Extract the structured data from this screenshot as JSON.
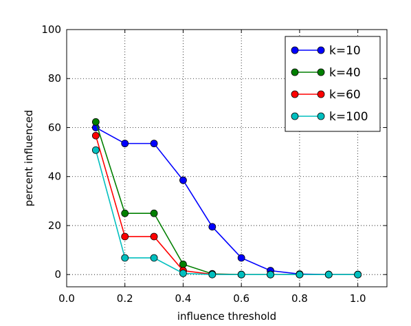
{
  "chart_data": {
    "type": "line",
    "title": "",
    "xlabel": "influence threshold",
    "ylabel": "percent influenced",
    "xlim": [
      0.0,
      1.1
    ],
    "ylim": [
      -5,
      100
    ],
    "x_ticks": [
      0.0,
      0.2,
      0.4,
      0.6,
      0.8,
      1.0
    ],
    "x_tick_labels": [
      "0.0",
      "0.2",
      "0.4",
      "0.6",
      "0.8",
      "1.0"
    ],
    "y_ticks": [
      0,
      20,
      40,
      60,
      80,
      100
    ],
    "y_tick_labels": [
      "0",
      "20",
      "40",
      "60",
      "80",
      "100"
    ],
    "grid": true,
    "legend_position": "top-right",
    "x": [
      0.1,
      0.2,
      0.3,
      0.4,
      0.5,
      0.6,
      0.7,
      0.8,
      0.9,
      1.0
    ],
    "series": [
      {
        "name": "k=10",
        "color": "#0000ff",
        "values": [
          60,
          53.5,
          53.5,
          38.5,
          19.5,
          6.8,
          1.6,
          0.2,
          0,
          0
        ]
      },
      {
        "name": "k=40",
        "color": "#007f00",
        "values": [
          62.3,
          25,
          25,
          4.2,
          0.3,
          0,
          0,
          0,
          0,
          0
        ]
      },
      {
        "name": "k=60",
        "color": "#ff0000",
        "values": [
          56.7,
          15.5,
          15.5,
          1.6,
          0.1,
          0,
          0,
          0,
          0,
          0
        ]
      },
      {
        "name": "k=100",
        "color": "#00bfbf",
        "values": [
          50.8,
          6.8,
          6.8,
          0.5,
          0,
          0,
          0,
          0,
          0,
          0
        ]
      }
    ]
  }
}
